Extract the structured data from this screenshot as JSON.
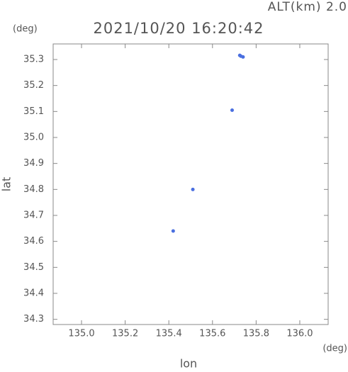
{
  "chart_data": {
    "type": "scatter",
    "title": "2021/10/20 16:20:42",
    "annotation": "ALT(km) 2.0",
    "y_unit": "(deg)",
    "x_unit": "(deg)",
    "xlabel": "lon",
    "ylabel": "lat",
    "xlim": [
      134.87,
      136.13
    ],
    "ylim": [
      34.28,
      35.36
    ],
    "xticks": [
      {
        "value": 135.0,
        "label": "135.0"
      },
      135.2,
      135.4,
      135.6,
      135.8,
      {
        "value": 136.0,
        "label": "136.0"
      }
    ],
    "yticks": [
      34.3,
      34.4,
      34.5,
      34.6,
      34.7,
      34.8,
      34.9,
      {
        "value": 35.0,
        "label": "35.0"
      },
      35.1,
      35.2,
      35.3
    ],
    "series": [
      {
        "color": "#4a6fe0",
        "x": [
          135.73,
          135.725,
          135.74,
          135.69,
          135.51,
          135.42
        ],
        "values": [
          35.313,
          35.316,
          35.31,
          35.105,
          34.8,
          34.64
        ]
      }
    ]
  }
}
